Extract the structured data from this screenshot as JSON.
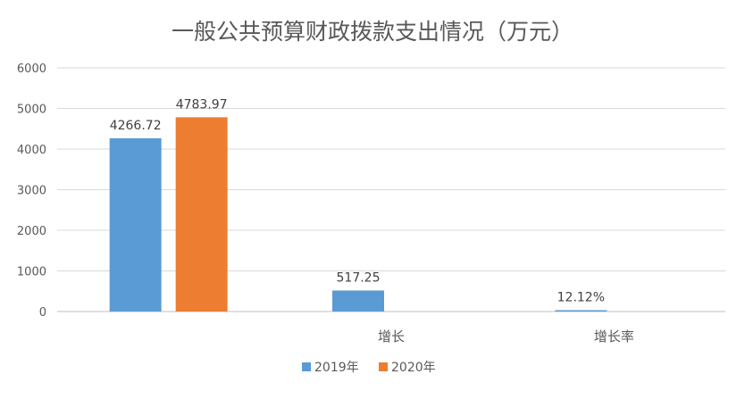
{
  "chart_data": {
    "type": "bar",
    "title": "一般公共预算财政拨款支出情况（万元）",
    "categories": [
      "",
      "增长",
      "增长率"
    ],
    "series": [
      {
        "name": "2019年",
        "color": "#5b9bd5",
        "values": [
          4266.72,
          517.25,
          12.12
        ],
        "labels": [
          "4266.72",
          "517.25",
          "12.12%"
        ]
      },
      {
        "name": "2020年",
        "color": "#ed7d31",
        "values": [
          4783.97,
          null,
          null
        ],
        "labels": [
          "4783.97",
          "",
          ""
        ]
      }
    ],
    "ylim": [
      0,
      6000
    ],
    "yticks": [
      "0",
      "1000",
      "2000",
      "3000",
      "4000",
      "5000",
      "6000"
    ],
    "grid": true,
    "legend_position": "bottom"
  }
}
